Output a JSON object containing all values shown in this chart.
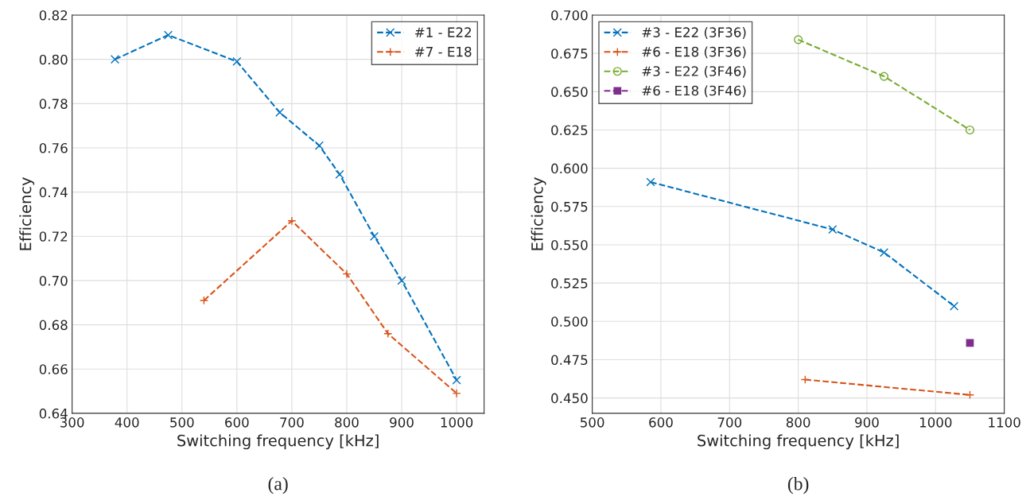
{
  "chart_data": [
    {
      "type": "line",
      "xlabel": "Switching frequency [kHz]",
      "ylabel": "Efficiency",
      "annotations": [
        "(a)"
      ],
      "xlim": [
        300,
        1050
      ],
      "xticks": [
        300,
        400,
        500,
        600,
        700,
        800,
        900,
        1000
      ],
      "ylim": [
        0.64,
        0.82
      ],
      "yticks": [
        {
          "value": 0.64,
          "label": "0.64"
        },
        {
          "value": 0.66,
          "label": "0.66"
        },
        {
          "value": 0.68,
          "label": "0.68"
        },
        {
          "value": 0.7,
          "label": "0.70"
        },
        {
          "value": 0.72,
          "label": "0.72"
        },
        {
          "value": 0.74,
          "label": "0.74"
        },
        {
          "value": 0.76,
          "label": "0.76"
        },
        {
          "value": 0.78,
          "label": "0.78"
        },
        {
          "value": 0.8,
          "label": "0.80"
        },
        {
          "value": 0.82,
          "label": "0.82"
        }
      ],
      "grid": true,
      "legend": "top right",
      "line_style": "dashed",
      "series": [
        {
          "name": "#1 - E22",
          "color": "#0072bd",
          "marker": "cross",
          "x": [
            378,
            475,
            600,
            678,
            750,
            787,
            850,
            900,
            1000
          ],
          "values": [
            0.8,
            0.811,
            0.799,
            0.776,
            0.761,
            0.748,
            0.72,
            0.7,
            0.655
          ]
        },
        {
          "name": "#7 - E18",
          "color": "#d95319",
          "marker": "plus",
          "x": [
            540,
            700,
            800,
            875,
            1000
          ],
          "values": [
            0.691,
            0.727,
            0.703,
            0.676,
            0.649
          ]
        }
      ]
    },
    {
      "type": "line",
      "xlabel": "Switching frequency [kHz]",
      "ylabel": "Efficiency",
      "annotations": [
        "(b)"
      ],
      "xlim": [
        500,
        1100
      ],
      "xticks": [
        500,
        600,
        700,
        800,
        900,
        1000,
        1100
      ],
      "ylim": [
        0.44,
        0.7
      ],
      "yticks": [
        {
          "value": 0.45,
          "label": "0.450"
        },
        {
          "value": 0.475,
          "label": "0.475"
        },
        {
          "value": 0.5,
          "label": "0.500"
        },
        {
          "value": 0.525,
          "label": "0.525"
        },
        {
          "value": 0.55,
          "label": "0.550"
        },
        {
          "value": 0.575,
          "label": "0.575"
        },
        {
          "value": 0.6,
          "label": "0.600"
        },
        {
          "value": 0.625,
          "label": "0.625"
        },
        {
          "value": 0.65,
          "label": "0.650"
        },
        {
          "value": 0.675,
          "label": "0.675"
        },
        {
          "value": 0.7,
          "label": "0.700"
        }
      ],
      "grid": true,
      "legend": "top left",
      "line_style": "dashed",
      "series": [
        {
          "name": "#3 - E22 (3F36)",
          "color": "#0072bd",
          "marker": "cross",
          "x": [
            585,
            850,
            925,
            1027
          ],
          "values": [
            0.591,
            0.56,
            0.545,
            0.51
          ]
        },
        {
          "name": "#6 - E18 (3F36)",
          "color": "#d95319",
          "marker": "plus",
          "x": [
            810,
            1050
          ],
          "values": [
            0.462,
            0.452
          ]
        },
        {
          "name": "#3 - E22 (3F46)",
          "color": "#77ac30",
          "marker": "circle",
          "x": [
            800,
            925,
            1050
          ],
          "values": [
            0.684,
            0.66,
            0.625
          ]
        },
        {
          "name": "#6 - E18 (3F46)",
          "color": "#7e2f8e",
          "marker": "square",
          "x": [
            1050
          ],
          "values": [
            0.486
          ]
        }
      ]
    }
  ]
}
